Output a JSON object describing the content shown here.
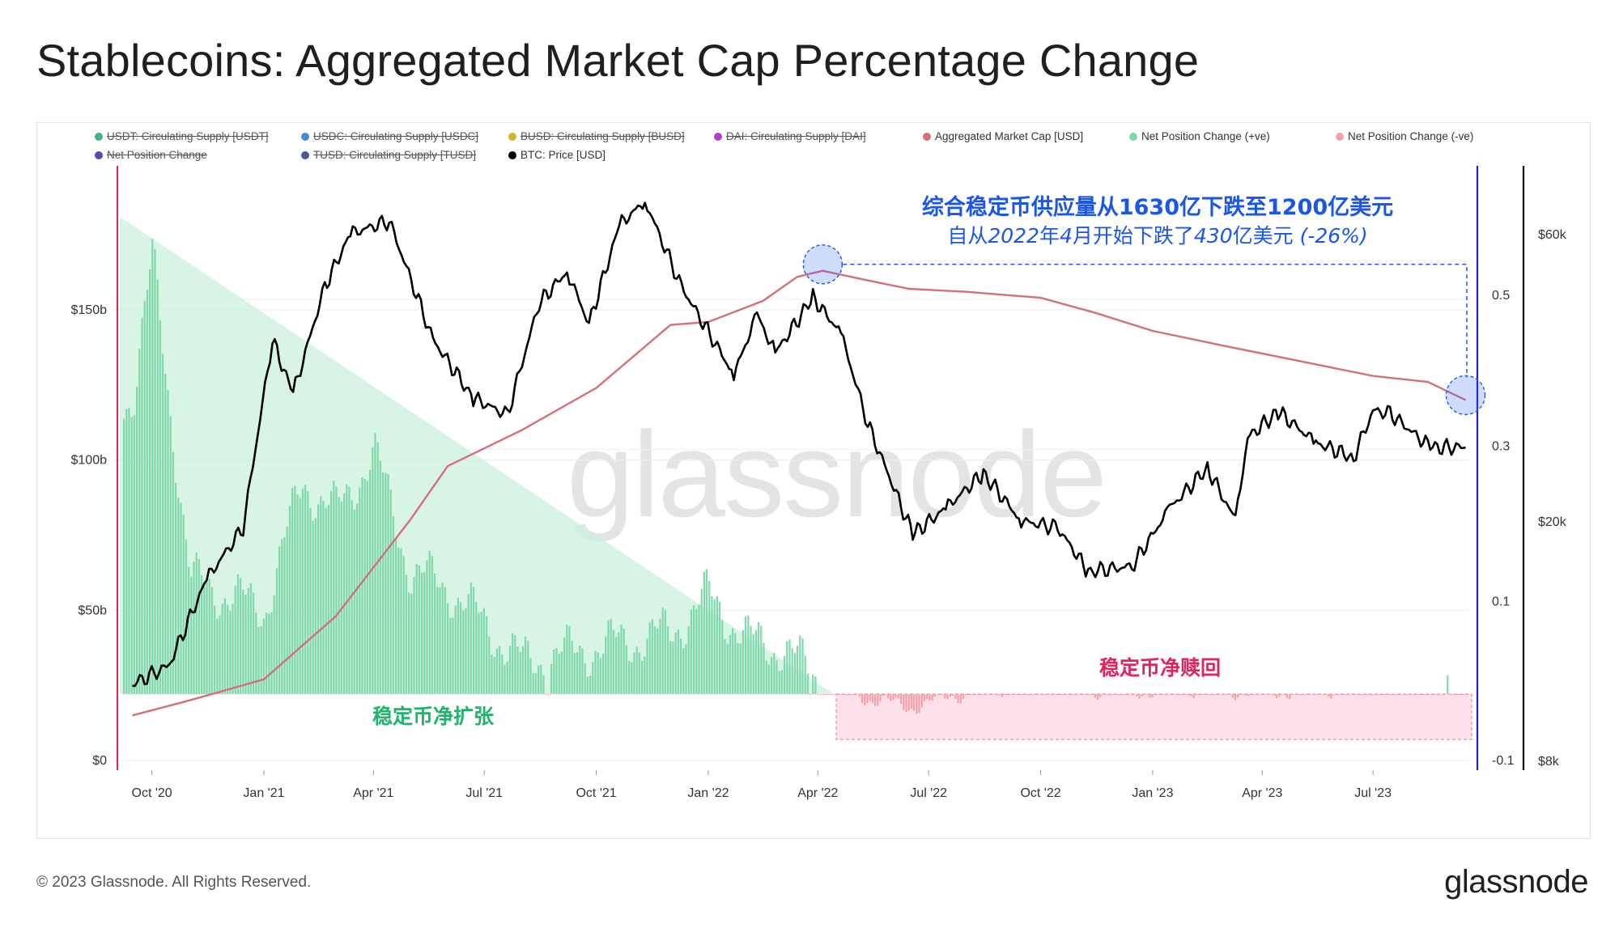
{
  "title": "Stablecoins: Aggregated Market Cap Percentage Change",
  "legend": [
    {
      "label": "USDT: Circulating Supply [USDT]",
      "color": "#26a17b",
      "hidden": true
    },
    {
      "label": "USDC: Circulating Supply [USDC]",
      "color": "#2775ca",
      "hidden": true
    },
    {
      "label": "BUSD: Circulating Supply [BUSD]",
      "color": "#c9a800",
      "hidden": true
    },
    {
      "label": "DAI: Circulating Supply [DAI]",
      "color": "#a020c0",
      "hidden": true
    },
    {
      "label": "Aggregated Market Cap [USD]",
      "color": "#d4707a",
      "hidden": false
    },
    {
      "label": "Net Position Change (+ve)",
      "color": "#7fd9aa",
      "hidden": false
    },
    {
      "label": "Net Position Change (-ve)",
      "color": "#f3a0a8",
      "hidden": false
    },
    {
      "label": "Net Position Change",
      "color": "#3a2aa8",
      "hidden": true
    },
    {
      "label": "TUSD: Circulating Supply [TUSD]",
      "color": "#2a3a8a",
      "hidden": true
    },
    {
      "label": "BTC: Price [USD]",
      "color": "#000000",
      "hidden": false
    }
  ],
  "annotations": {
    "headline": "综合稳定币供应量从1630亿下跌至1200亿美元",
    "subline_prefix": "自从",
    "subline_italic1": "2022",
    "subline_mid1": "年",
    "subline_italic2": "4",
    "subline_mid2": "月开始下跌了",
    "subline_italic3": "430",
    "subline_mid3": "亿美元 ",
    "subline_italic4": "(-26%)",
    "expansion_label": "稳定币净扩张",
    "redemption_label": "稳定币净赎回"
  },
  "watermark": "glassnode",
  "footer": "© 2023 Glassnode. All Rights Reserved.",
  "brand": "glassnode",
  "chart_data": {
    "type": "line",
    "x_ticks": [
      "Oct '20",
      "Jan '21",
      "Apr '21",
      "Jul '21",
      "Oct '21",
      "Jan '22",
      "Apr '22",
      "Jul '22",
      "Oct '22",
      "Jan '23",
      "Apr '23",
      "Jul '23"
    ],
    "left_axis": {
      "label": "Aggregated Market Cap [USD]",
      "ticks": [
        "$0",
        "$50b",
        "$100b",
        "$150b"
      ],
      "range_billion": [
        0,
        150
      ]
    },
    "mid_axis": {
      "label": "Net Position Change",
      "ticks": [
        "-0.1",
        "0.1",
        "0.3",
        "0.5"
      ],
      "range": [
        -0.1,
        0.5
      ]
    },
    "right_axis": {
      "label": "BTC: Price [USD]",
      "scale": "log",
      "ticks": [
        "$8k",
        "$20k",
        "$60k"
      ]
    },
    "series": [
      {
        "name": "Aggregated Market Cap [USD]",
        "unit": "billion USD",
        "x": [
          "2020-09-15",
          "2020-11-01",
          "2021-01-01",
          "2021-03-01",
          "2021-05-01",
          "2021-06-01",
          "2021-08-01",
          "2021-10-01",
          "2021-12-01",
          "2022-01-01",
          "2022-02-15",
          "2022-03-15",
          "2022-04-05",
          "2022-05-10",
          "2022-06-15",
          "2022-08-01",
          "2022-10-01",
          "2022-11-15",
          "2023-01-01",
          "2023-03-01",
          "2023-05-01",
          "2023-07-01",
          "2023-08-15",
          "2023-09-15"
        ],
        "values": [
          15,
          20,
          27,
          48,
          80,
          98,
          110,
          124,
          145,
          146,
          153,
          161,
          163,
          160,
          157,
          156,
          154,
          149,
          143,
          138,
          133,
          128,
          126,
          120
        ]
      },
      {
        "name": "BTC: Price [USD]",
        "unit": "USD",
        "x": [
          "2020-09-15",
          "2020-10-15",
          "2020-11-15",
          "2020-12-15",
          "2021-01-08",
          "2021-01-25",
          "2021-02-20",
          "2021-03-13",
          "2021-04-14",
          "2021-05-20",
          "2021-06-22",
          "2021-07-20",
          "2021-08-15",
          "2021-09-07",
          "2021-09-25",
          "2021-10-20",
          "2021-11-10",
          "2021-12-10",
          "2022-01-22",
          "2022-02-10",
          "2022-02-25",
          "2022-03-28",
          "2022-04-20",
          "2022-05-12",
          "2022-06-18",
          "2022-07-15",
          "2022-08-15",
          "2022-09-15",
          "2022-10-15",
          "2022-11-09",
          "2022-12-15",
          "2023-01-15",
          "2023-02-15",
          "2023-03-10",
          "2023-03-20",
          "2023-04-14",
          "2023-05-15",
          "2023-06-15",
          "2023-07-01",
          "2023-07-15",
          "2023-08-17",
          "2023-09-15"
        ],
        "values": [
          10700,
          11500,
          16000,
          19500,
          40000,
          32500,
          49000,
          60000,
          63000,
          40000,
          32000,
          30000,
          46000,
          52000,
          42500,
          62000,
          68000,
          49000,
          35000,
          44000,
          38000,
          47000,
          41000,
          29000,
          19000,
          21000,
          24000,
          20000,
          19500,
          16500,
          16800,
          21000,
          24500,
          20000,
          27500,
          30400,
          27000,
          25500,
          30500,
          30200,
          26500,
          26500
        ]
      },
      {
        "name": "Net Position Change",
        "unit": "ratio",
        "x": [
          "2020-09-15",
          "2020-10-01",
          "2020-11-01",
          "2021-01-01",
          "2021-02-01",
          "2021-03-01",
          "2021-04-01",
          "2021-05-01",
          "2021-06-01",
          "2021-08-01",
          "2021-10-01",
          "2021-12-01",
          "2022-01-01",
          "2022-02-01",
          "2022-03-01",
          "2022-04-01",
          "2022-05-15",
          "2022-06-15",
          "2022-08-01",
          "2022-10-01",
          "2022-12-01",
          "2023-02-01",
          "2023-04-01",
          "2023-06-01",
          "2023-08-01",
          "2023-09-15"
        ],
        "values": [
          0.37,
          0.56,
          0.13,
          0.09,
          0.26,
          0.22,
          0.3,
          0.14,
          0.12,
          0.02,
          0.04,
          0.06,
          0.11,
          0.05,
          0.04,
          0.0,
          -0.03,
          -0.04,
          -0.02,
          -0.01,
          -0.02,
          -0.015,
          -0.02,
          -0.015,
          -0.01,
          -0.01
        ]
      }
    ],
    "grid": true,
    "legend_position": "top"
  }
}
